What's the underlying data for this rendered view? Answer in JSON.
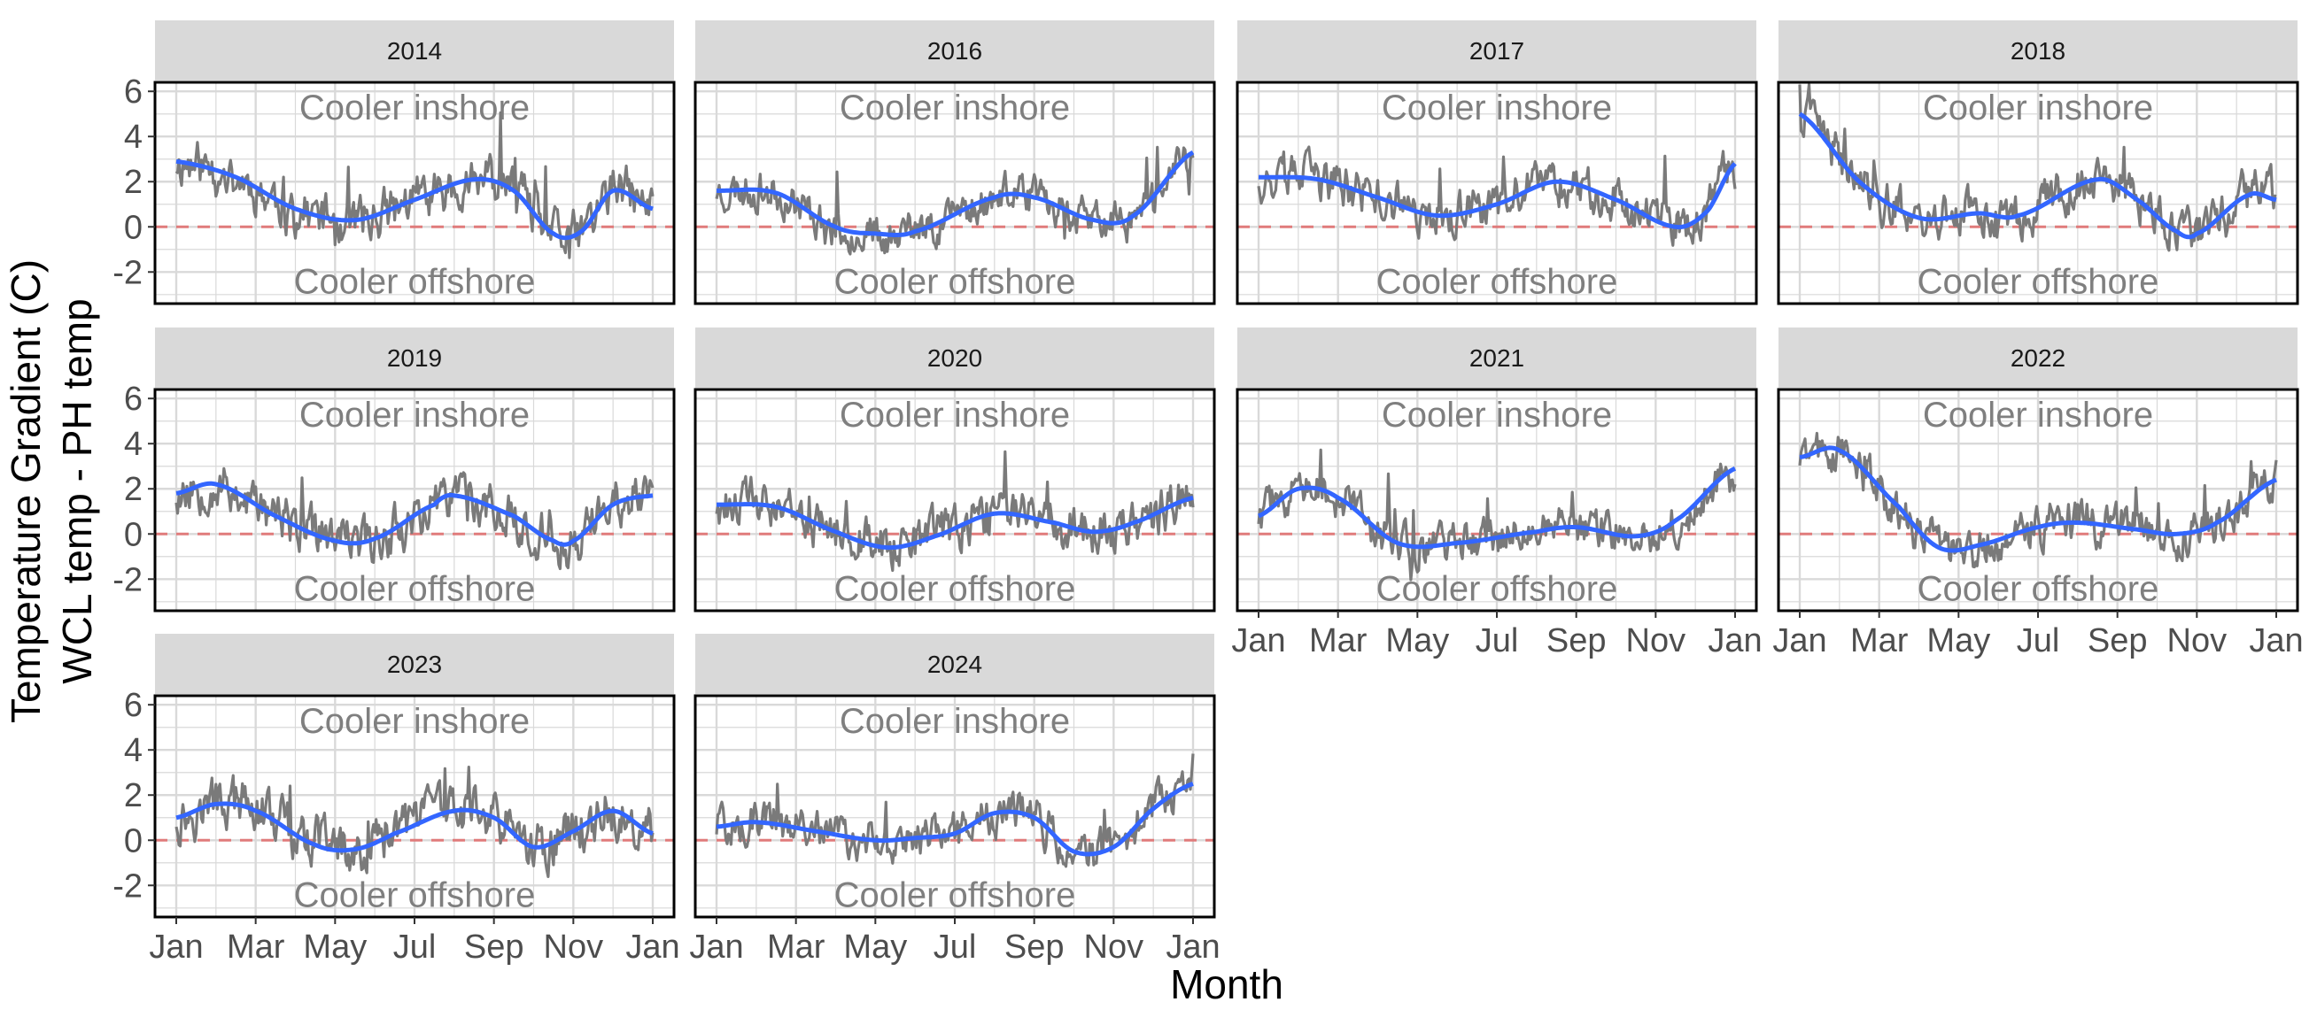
{
  "chart_data": {
    "type": "line",
    "facet_by": "year",
    "layout": "4 columns, 3 rows",
    "xlabel": "Month",
    "ylabel_lines": [
      "Temperature Gradient (C)",
      "WCL temp - PH temp"
    ],
    "x_tick_labels": [
      "Jan",
      "Mar",
      "May",
      "Jul",
      "Sep",
      "Nov",
      "Jan"
    ],
    "x_range_months": [
      0,
      12
    ],
    "y_ticks": [
      -2,
      0,
      2,
      4,
      6
    ],
    "ylim": [
      -3.4,
      6.4
    ],
    "reference_line": {
      "y": 0,
      "style": "dashed",
      "color": "#e07b7b"
    },
    "annotations": {
      "upper": "Cooler inshore",
      "lower": "Cooler offshore"
    },
    "colors": {
      "raw": "#7a7a7a",
      "smooth": "#3366ff",
      "strip_bg": "#d9d9d9",
      "grid": "#d9d9d9",
      "panel_border": "#000000"
    },
    "series_note_points": "smooth trend points as [month, gradient] pairs per year; grey line is the daily raw series around the trend",
    "panels": [
      {
        "year": "2014",
        "seed": 11,
        "noise": 0.85,
        "smooth": [
          [
            0,
            2.9
          ],
          [
            1.5,
            2.2
          ],
          [
            3,
            0.8
          ],
          [
            4.5,
            0.3
          ],
          [
            6,
            1.2
          ],
          [
            7.5,
            2.1
          ],
          [
            8.5,
            1.6
          ],
          [
            9.5,
            -0.3
          ],
          [
            10.2,
            -0.2
          ],
          [
            11,
            1.6
          ],
          [
            12,
            0.8
          ]
        ]
      },
      {
        "year": "2016",
        "seed": 23,
        "noise": 0.7,
        "smooth": [
          [
            0,
            1.6
          ],
          [
            1.5,
            1.5
          ],
          [
            3,
            0
          ],
          [
            4,
            -0.3
          ],
          [
            5,
            -0.2
          ],
          [
            7,
            1.3
          ],
          [
            8,
            1.3
          ],
          [
            9.5,
            0.3
          ],
          [
            10.5,
            0.5
          ],
          [
            12,
            3.3
          ]
        ]
      },
      {
        "year": "2017",
        "seed": 37,
        "noise": 0.8,
        "smooth": [
          [
            0,
            2.2
          ],
          [
            1.5,
            2.1
          ],
          [
            3,
            1.3
          ],
          [
            4.5,
            0.5
          ],
          [
            6,
            1.0
          ],
          [
            7.5,
            2.0
          ],
          [
            9,
            1.2
          ],
          [
            10.5,
            0
          ],
          [
            11.3,
            0.7
          ],
          [
            12,
            2.8
          ]
        ]
      },
      {
        "year": "2018",
        "seed": 41,
        "noise": 0.8,
        "smooth": [
          [
            0,
            5.0
          ],
          [
            1.5,
            2.0
          ],
          [
            3,
            0.4
          ],
          [
            4.5,
            0.6
          ],
          [
            5.5,
            0.5
          ],
          [
            7.5,
            2.1
          ],
          [
            8.5,
            1.2
          ],
          [
            9.5,
            -0.2
          ],
          [
            10,
            -0.3
          ],
          [
            11.3,
            1.4
          ],
          [
            12,
            1.2
          ]
        ]
      },
      {
        "year": "2019",
        "seed": 53,
        "noise": 0.85,
        "smooth": [
          [
            0,
            1.8
          ],
          [
            1,
            2.2
          ],
          [
            2.5,
            0.8
          ],
          [
            4,
            -0.3
          ],
          [
            5,
            -0.2
          ],
          [
            6.5,
            1.3
          ],
          [
            7,
            1.7
          ],
          [
            8.5,
            0.8
          ],
          [
            9.5,
            -0.3
          ],
          [
            10,
            -0.3
          ],
          [
            11,
            1.3
          ],
          [
            12,
            1.7
          ]
        ]
      },
      {
        "year": "2020",
        "seed": 61,
        "noise": 0.85,
        "smooth": [
          [
            0,
            1.3
          ],
          [
            1.5,
            1.2
          ],
          [
            3,
            0.1
          ],
          [
            4.3,
            -0.6
          ],
          [
            5.5,
            -0.1
          ],
          [
            7,
            0.9
          ],
          [
            8.5,
            0.5
          ],
          [
            9.5,
            0.1
          ],
          [
            10.5,
            0.5
          ],
          [
            12,
            1.6
          ]
        ]
      },
      {
        "year": "2021",
        "seed": 73,
        "noise": 0.75,
        "smooth": [
          [
            0,
            0.8
          ],
          [
            1,
            2.0
          ],
          [
            2,
            1.6
          ],
          [
            3.5,
            -0.4
          ],
          [
            5,
            -0.4
          ],
          [
            7,
            0.1
          ],
          [
            8,
            0.3
          ],
          [
            9.5,
            -0.1
          ],
          [
            10.5,
            0.6
          ],
          [
            12,
            2.9
          ]
        ]
      },
      {
        "year": "2022",
        "seed": 89,
        "noise": 0.8,
        "smooth": [
          [
            0,
            3.4
          ],
          [
            1,
            3.7
          ],
          [
            2.5,
            1.2
          ],
          [
            3.5,
            -0.6
          ],
          [
            4.5,
            -0.5
          ],
          [
            6,
            0.3
          ],
          [
            7,
            0.5
          ],
          [
            8.5,
            0.2
          ],
          [
            9.5,
            0
          ],
          [
            10.5,
            0.5
          ],
          [
            12,
            2.4
          ]
        ]
      },
      {
        "year": "2023",
        "seed": 97,
        "noise": 0.9,
        "smooth": [
          [
            0,
            1.0
          ],
          [
            1,
            1.6
          ],
          [
            2,
            1.3
          ],
          [
            3.5,
            -0.2
          ],
          [
            4.5,
            -0.4
          ],
          [
            5.5,
            0.3
          ],
          [
            7,
            1.3
          ],
          [
            8,
            1.0
          ],
          [
            9,
            -0.3
          ],
          [
            10,
            0.4
          ],
          [
            11,
            1.3
          ],
          [
            12,
            0.3
          ]
        ]
      },
      {
        "year": "2024",
        "seed": 101,
        "noise": 0.75,
        "smooth": [
          [
            0,
            0.6
          ],
          [
            1,
            0.8
          ],
          [
            2.5,
            0.4
          ],
          [
            4,
            0
          ],
          [
            5,
            0.1
          ],
          [
            6,
            0.3
          ],
          [
            7,
            1.2
          ],
          [
            8,
            1.0
          ],
          [
            9,
            -0.5
          ],
          [
            10,
            -0.3
          ],
          [
            11,
            1.4
          ],
          [
            12,
            2.5
          ]
        ]
      }
    ]
  }
}
